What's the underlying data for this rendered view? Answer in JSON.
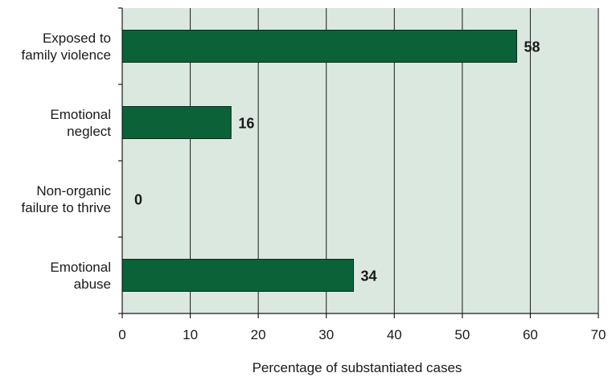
{
  "chart_data": {
    "type": "bar",
    "orientation": "horizontal",
    "categories": [
      "Exposed to family violence",
      "Emotional neglect",
      "Non-organic failure to thrive",
      "Emotional abuse"
    ],
    "category_label_lines": [
      [
        "Exposed to",
        "family violence"
      ],
      [
        "Emotional",
        "neglect"
      ],
      [
        "Non-organic",
        "failure to thrive"
      ],
      [
        "Emotional",
        "abuse"
      ]
    ],
    "values": [
      58,
      16,
      0,
      34
    ],
    "xlabel": "Percentage of substantiated cases",
    "ylabel": "",
    "xlim": [
      0,
      70
    ],
    "x_ticks": [
      0,
      10,
      20,
      30,
      40,
      50,
      60,
      70
    ],
    "grid": true,
    "colors": {
      "bar": "#0b6138",
      "bar_edge": "#0a2e1c",
      "plot_background": "#dbe8e0",
      "grid": "#1a1a1a",
      "axis": "#1a1a1a"
    }
  }
}
